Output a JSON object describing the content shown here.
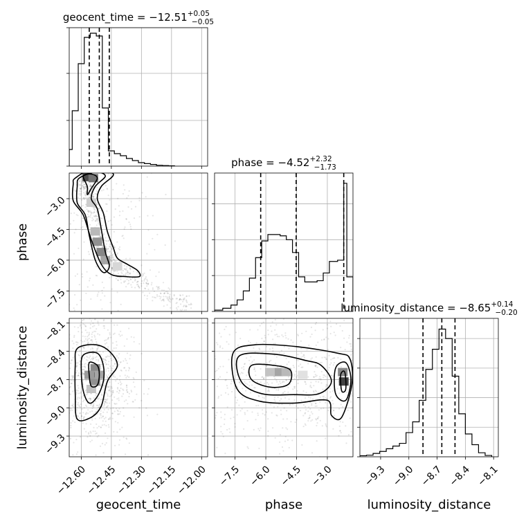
{
  "chart_data": {
    "type": "corner",
    "parameters": [
      {
        "name": "geocent_time",
        "xlabel": "geocent_time",
        "ylabel": "",
        "range": [
          -12.66,
          -11.97
        ],
        "ticks": [
          "−12.60",
          "−12.45",
          "−12.30",
          "−12.15",
          "−12.00"
        ],
        "tick_values": [
          -12.6,
          -12.45,
          -12.3,
          -12.15,
          -12.0
        ],
        "title_value": "−12.51",
        "title_plus": "+0.05",
        "title_minus": "−0.05",
        "quantiles": [
          -12.56,
          -12.51,
          -12.46
        ],
        "hist": {
          "edges": [
            -12.66,
            -12.645,
            -12.615,
            -12.585,
            -12.555,
            -12.525,
            -12.495,
            -12.465,
            -12.435,
            -12.405,
            -12.375,
            -12.345,
            -12.315,
            -12.285,
            -12.255,
            -12.225,
            -12.195,
            -12.165,
            -12.135
          ],
          "heights": [
            0.12,
            0.4,
            0.74,
            0.93,
            0.96,
            0.94,
            0.42,
            0.11,
            0.09,
            0.075,
            0.055,
            0.04,
            0.025,
            0.018,
            0.012,
            0.006,
            0.004,
            0.002
          ],
          "ymax": 1.0
        },
        "hist_y_ticks": [
          0.0,
          0.33,
          0.67,
          1.0
        ]
      },
      {
        "name": "phase",
        "xlabel": "phase",
        "ylabel": "phase",
        "range": [
          -8.5,
          -1.75
        ],
        "ticks": [
          "−7.5",
          "−6.0",
          "−4.5",
          "−3.0"
        ],
        "tick_values": [
          -7.5,
          -6.0,
          -4.5,
          -3.0
        ],
        "title_value": "−4.52",
        "title_plus": "+2.32",
        "title_minus": "−1.73",
        "quantiles": [
          -6.25,
          -4.52,
          -2.2
        ],
        "hist": {
          "edges": [
            -8.5,
            -8.1,
            -7.7,
            -7.4,
            -7.1,
            -6.8,
            -6.5,
            -6.2,
            -5.9,
            -5.6,
            -5.3,
            -5.0,
            -4.7,
            -4.4,
            -4.1,
            -3.8,
            -3.5,
            -3.2,
            -2.9,
            -2.5,
            -2.2,
            -2.05,
            -1.75
          ],
          "heights": [
            0.01,
            0.025,
            0.05,
            0.09,
            0.16,
            0.26,
            0.42,
            0.55,
            0.6,
            0.6,
            0.59,
            0.56,
            0.46,
            0.27,
            0.23,
            0.23,
            0.24,
            0.3,
            0.39,
            0.4,
            1.0,
            0.27
          ],
          "ymax": 1.08
        },
        "hist_y_ticks": [
          0.0,
          0.28,
          0.56,
          0.84
        ]
      },
      {
        "name": "luminosity_distance",
        "xlabel": "luminosity_distance",
        "ylabel": "luminosity_distance",
        "range": [
          -9.52,
          -8.05
        ],
        "ticks": [
          "−9.3",
          "−9.0",
          "−8.7",
          "−8.4",
          "−8.1"
        ],
        "tick_values": [
          -9.3,
          -9.0,
          -8.7,
          -8.4,
          -8.1
        ],
        "title_value": "−8.65",
        "title_plus": "+0.14",
        "title_minus": "−0.20",
        "quantiles": [
          -8.85,
          -8.65,
          -8.51
        ],
        "hist": {
          "edges": [
            -9.52,
            -9.45,
            -9.38,
            -9.31,
            -9.24,
            -9.17,
            -9.1,
            -9.03,
            -8.96,
            -8.89,
            -8.82,
            -8.75,
            -8.68,
            -8.61,
            -8.54,
            -8.47,
            -8.4,
            -8.33,
            -8.26,
            -8.19,
            -8.12
          ],
          "heights": [
            0.008,
            0.012,
            0.025,
            0.04,
            0.06,
            0.08,
            0.1,
            0.18,
            0.26,
            0.42,
            0.65,
            0.8,
            0.95,
            0.88,
            0.6,
            0.32,
            0.17,
            0.09,
            0.03,
            0.01
          ],
          "ymax": 1.03
        },
        "hist_y_ticks": [
          0.0,
          0.22,
          0.44,
          0.66,
          0.88
        ]
      }
    ],
    "scatter_pairs": [
      {
        "x": "geocent_time",
        "y": "phase",
        "contours": [
          [
            [
              -12.59,
              -1.9
            ],
            [
              -12.55,
              -1.8
            ],
            [
              -12.52,
              -2.0
            ],
            [
              -12.55,
              -2.5
            ],
            [
              -12.57,
              -2.8
            ],
            [
              -12.57,
              -2.4
            ]
          ],
          [
            [
              -12.61,
              -2.0
            ],
            [
              -12.53,
              -1.7
            ],
            [
              -12.48,
              -1.9
            ],
            [
              -12.53,
              -2.4
            ],
            [
              -12.55,
              -3.0
            ],
            [
              -12.52,
              -3.5
            ],
            [
              -12.5,
              -4.5
            ],
            [
              -12.48,
              -5.6
            ],
            [
              -12.46,
              -6.3
            ],
            [
              -12.49,
              -6.6
            ],
            [
              -12.53,
              -6.0
            ],
            [
              -12.56,
              -4.8
            ],
            [
              -12.58,
              -3.8
            ],
            [
              -12.62,
              -3.2
            ],
            [
              -12.62,
              -2.4
            ]
          ],
          [
            [
              -12.63,
              -2.0
            ],
            [
              -12.54,
              -1.55
            ],
            [
              -12.44,
              -1.8
            ],
            [
              -12.5,
              -2.4
            ],
            [
              -12.52,
              -3.0
            ],
            [
              -12.49,
              -3.7
            ],
            [
              -12.47,
              -4.6
            ],
            [
              -12.44,
              -5.4
            ],
            [
              -12.42,
              -5.9
            ],
            [
              -12.37,
              -6.2
            ],
            [
              -12.32,
              -6.5
            ],
            [
              -12.31,
              -6.8
            ],
            [
              -12.38,
              -6.8
            ],
            [
              -12.45,
              -6.7
            ],
            [
              -12.5,
              -6.2
            ],
            [
              -12.55,
              -5.0
            ],
            [
              -12.59,
              -3.8
            ],
            [
              -12.64,
              -3.1
            ],
            [
              -12.64,
              -2.3
            ]
          ]
        ],
        "density": [
          {
            "x": -12.57,
            "y": -1.95,
            "v": 0.9
          },
          {
            "x": -12.54,
            "y": -2.0,
            "v": 0.7
          },
          {
            "x": -12.52,
            "y": -5.1,
            "v": 0.55
          },
          {
            "x": -12.5,
            "y": -5.6,
            "v": 0.6
          },
          {
            "x": -12.48,
            "y": -6.0,
            "v": 0.45
          },
          {
            "x": -12.53,
            "y": -4.6,
            "v": 0.35
          },
          {
            "x": -12.55,
            "y": -3.2,
            "v": 0.25
          },
          {
            "x": -12.42,
            "y": -6.3,
            "v": 0.2
          }
        ],
        "scatter_trend": [
          [
            -12.62,
            -2.0
          ],
          [
            -12.56,
            -2.6
          ],
          [
            -12.54,
            -3.8
          ],
          [
            -12.5,
            -5.2
          ],
          [
            -12.45,
            -6.2
          ],
          [
            -12.35,
            -6.8
          ],
          [
            -12.22,
            -7.6
          ],
          [
            -12.05,
            -8.3
          ]
        ]
      },
      {
        "x": "geocent_time",
        "y": "luminosity_distance",
        "contours": [
          [
            [
              -12.56,
              -8.52
            ],
            [
              -12.52,
              -8.55
            ],
            [
              -12.51,
              -8.65
            ],
            [
              -12.52,
              -8.76
            ],
            [
              -12.55,
              -8.77
            ],
            [
              -12.56,
              -8.66
            ]
          ],
          [
            [
              -12.59,
              -8.44
            ],
            [
              -12.52,
              -8.42
            ],
            [
              -12.49,
              -8.55
            ],
            [
              -12.49,
              -8.72
            ],
            [
              -12.52,
              -8.88
            ],
            [
              -12.56,
              -8.95
            ],
            [
              -12.59,
              -8.82
            ],
            [
              -12.6,
              -8.6
            ]
          ],
          [
            [
              -12.62,
              -8.37
            ],
            [
              -12.53,
              -8.33
            ],
            [
              -12.46,
              -8.4
            ],
            [
              -12.42,
              -8.55
            ],
            [
              -12.47,
              -8.72
            ],
            [
              -12.5,
              -8.98
            ],
            [
              -12.55,
              -9.1
            ],
            [
              -12.62,
              -9.12
            ],
            [
              -12.63,
              -8.85
            ],
            [
              -12.63,
              -8.55
            ]
          ]
        ],
        "density": [
          {
            "x": -12.54,
            "y": -8.65,
            "v": 0.95
          },
          {
            "x": -12.53,
            "y": -8.58,
            "v": 0.6
          },
          {
            "x": -12.53,
            "y": -8.72,
            "v": 0.55
          },
          {
            "x": -12.56,
            "y": -8.65,
            "v": 0.5
          },
          {
            "x": -12.51,
            "y": -8.65,
            "v": 0.45
          },
          {
            "x": -12.55,
            "y": -8.8,
            "v": 0.3
          }
        ],
        "scatter_trend": []
      },
      {
        "x": "phase",
        "y": "luminosity_distance",
        "contours": [
          [
            [
              -6.7,
              -8.55
            ],
            [
              -5.6,
              -8.55
            ],
            [
              -4.8,
              -8.6
            ],
            [
              -4.9,
              -8.75
            ],
            [
              -5.8,
              -8.78
            ],
            [
              -6.7,
              -8.7
            ]
          ],
          [
            [
              -7.3,
              -8.45
            ],
            [
              -5.6,
              -8.43
            ],
            [
              -4.0,
              -8.5
            ],
            [
              -3.3,
              -8.55
            ],
            [
              -2.8,
              -8.72
            ],
            [
              -3.4,
              -8.85
            ],
            [
              -4.6,
              -8.86
            ],
            [
              -6.2,
              -8.85
            ],
            [
              -7.2,
              -8.72
            ]
          ],
          [
            [
              -7.6,
              -8.42
            ],
            [
              -6.5,
              -8.33
            ],
            [
              -4.5,
              -8.35
            ],
            [
              -2.5,
              -8.42
            ],
            [
              -1.9,
              -8.48
            ],
            [
              -1.8,
              -8.75
            ],
            [
              -2.3,
              -9.1
            ],
            [
              -2.8,
              -9.08
            ],
            [
              -3.0,
              -8.92
            ],
            [
              -4.6,
              -8.95
            ],
            [
              -6.3,
              -8.93
            ],
            [
              -7.4,
              -8.8
            ]
          ],
          [
            [
              -2.6,
              -8.58
            ],
            [
              -2.1,
              -8.52
            ],
            [
              -1.85,
              -8.7
            ],
            [
              -2.1,
              -8.92
            ],
            [
              -2.6,
              -8.85
            ]
          ],
          [
            [
              -2.35,
              -8.65
            ],
            [
              -2.15,
              -8.62
            ],
            [
              -2.1,
              -8.8
            ],
            [
              -2.3,
              -8.82
            ]
          ]
        ],
        "density": [
          {
            "x": -5.4,
            "y": -8.62,
            "v": 0.45
          },
          {
            "x": -5.0,
            "y": -8.62,
            "v": 0.35
          },
          {
            "x": -5.8,
            "y": -8.62,
            "v": 0.3
          },
          {
            "x": -2.2,
            "y": -8.72,
            "v": 0.95
          },
          {
            "x": -2.25,
            "y": -8.62,
            "v": 0.6
          },
          {
            "x": -4.2,
            "y": -8.65,
            "v": 0.15
          }
        ],
        "scatter_trend": []
      }
    ]
  }
}
